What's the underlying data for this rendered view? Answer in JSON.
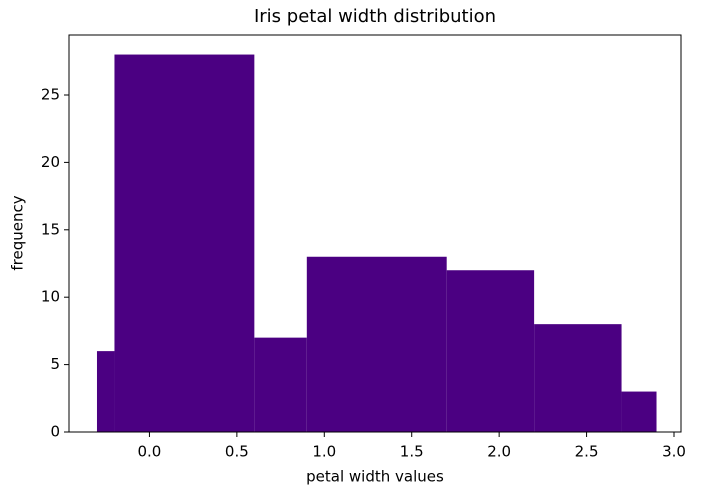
{
  "chart_data": {
    "type": "histogram",
    "title": "Iris petal width distribution",
    "xlabel": "petal width values",
    "ylabel": "frequency",
    "bins": [
      -0.3,
      -0.2,
      0.6,
      0.9,
      1.7,
      2.2,
      2.7,
      2.9
    ],
    "values": [
      6,
      28,
      7,
      13,
      12,
      8,
      3
    ],
    "color": "#4b0082",
    "xlim": [
      -0.46,
      3.04
    ],
    "ylim": [
      0,
      29.45
    ],
    "xticks": [
      {
        "value": 0,
        "label": "0.0"
      },
      0.5,
      {
        "value": 1,
        "label": "1.0"
      },
      1.5,
      {
        "value": 2,
        "label": "2.0"
      },
      2.5,
      {
        "value": 3,
        "label": "3.0"
      }
    ],
    "yticks": [
      0,
      5,
      10,
      15,
      20,
      25
    ]
  }
}
